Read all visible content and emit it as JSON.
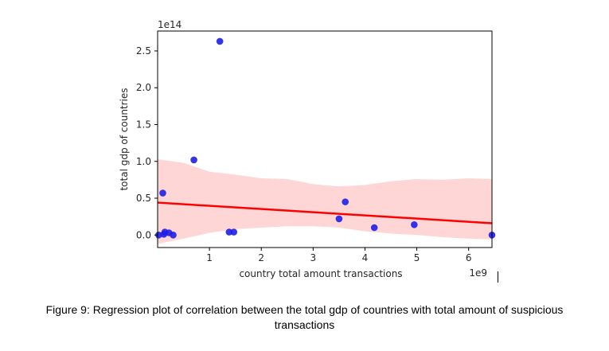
{
  "chart_data": {
    "type": "scatter",
    "xlabel": "country total amount transactions",
    "ylabel": "total gdp of countries",
    "x_offset_label": "1e9",
    "y_offset_label": "1e14",
    "xlim": [
      0.0,
      6.45
    ],
    "ylim": [
      -0.17,
      2.77
    ],
    "x_ticks": [
      1,
      2,
      3,
      4,
      5,
      6
    ],
    "y_ticks": [
      0.0,
      0.5,
      1.0,
      1.5,
      2.0,
      2.5
    ],
    "y_tick_labels": [
      "0.0",
      "0.5",
      "1.0",
      "1.5",
      "2.0",
      "2.5"
    ],
    "grid": false,
    "points_color": "#1f1fe6",
    "line_color": "#ff0000",
    "band_color": "#ffd6d6",
    "x": [
      0.02,
      0.12,
      0.1,
      0.14,
      0.22,
      0.3,
      0.7,
      1.2,
      1.38,
      1.47,
      3.5,
      3.62,
      4.18,
      4.95,
      6.45
    ],
    "y": [
      0.0,
      0.01,
      0.57,
      0.04,
      0.03,
      0.0,
      1.02,
      2.63,
      0.04,
      0.04,
      0.22,
      0.45,
      0.1,
      0.14,
      0.0
    ],
    "regression_line": {
      "x": [
        0.0,
        6.45
      ],
      "y": [
        0.44,
        0.16
      ]
    },
    "confidence_band": {
      "x": [
        0.0,
        0.5,
        1.0,
        1.5,
        2.0,
        2.5,
        3.0,
        3.5,
        4.0,
        4.5,
        5.0,
        5.5,
        6.0,
        6.45
      ],
      "upper": [
        1.03,
        0.98,
        0.86,
        0.82,
        0.77,
        0.76,
        0.69,
        0.66,
        0.68,
        0.73,
        0.76,
        0.75,
        0.77,
        0.76
      ],
      "lower": [
        -0.12,
        -0.05,
        0.03,
        0.08,
        0.1,
        0.12,
        0.12,
        0.1,
        0.05,
        0.02,
        0.0,
        -0.03,
        -0.05,
        -0.06
      ]
    }
  },
  "caption": "Figure 9: Regression plot of correlation between the total gdp of countries with total amount of suspicious transactions"
}
